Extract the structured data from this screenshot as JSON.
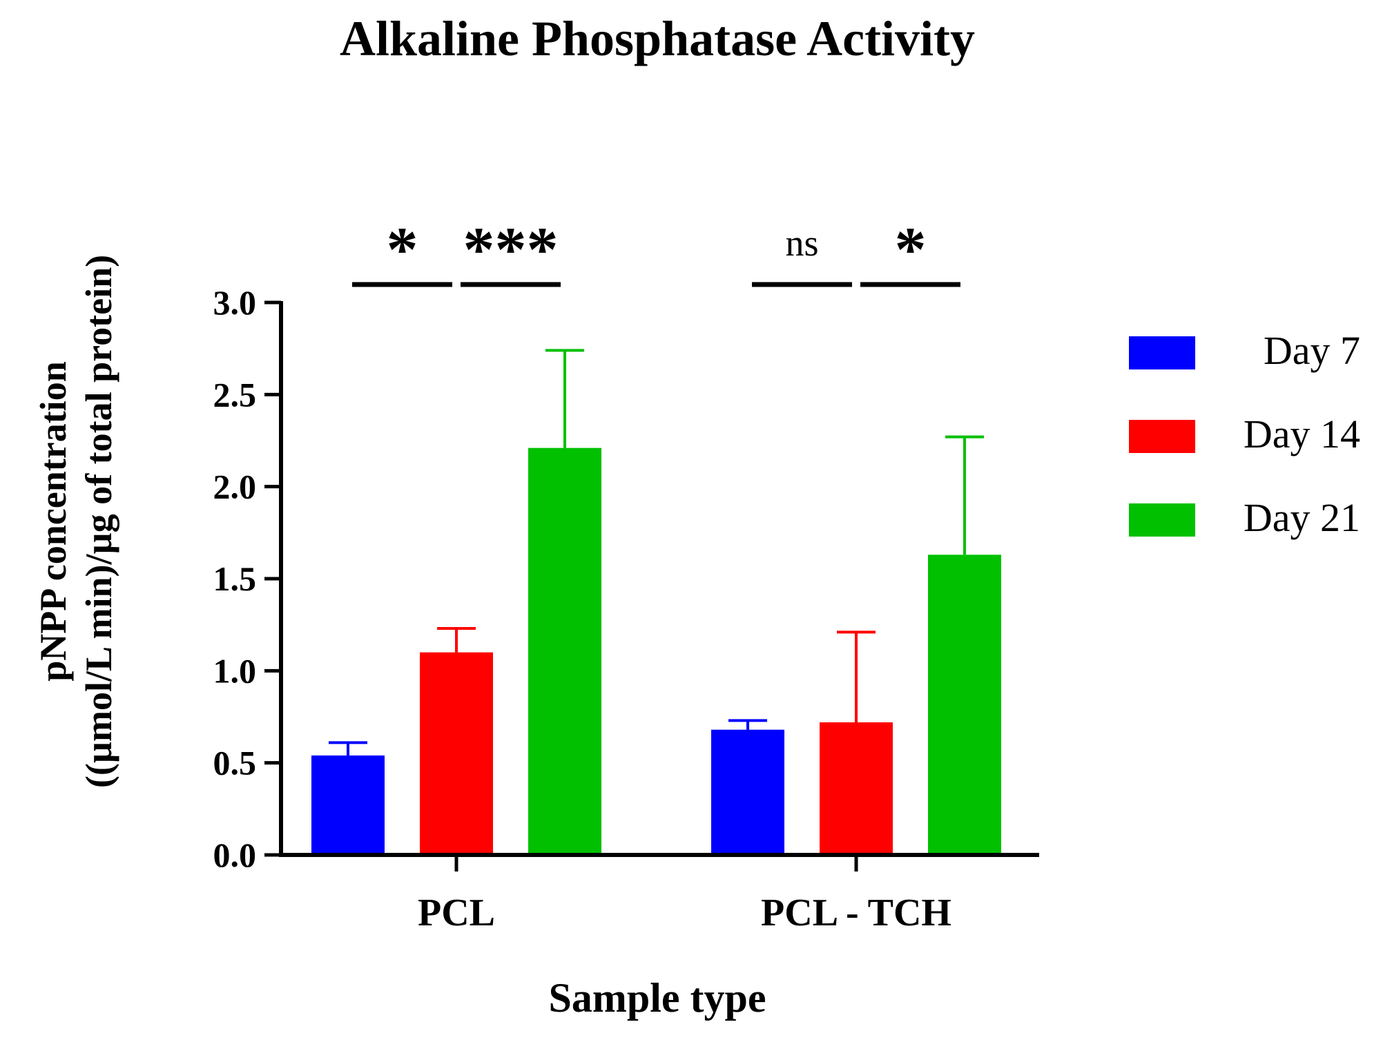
{
  "chart_data": {
    "type": "bar",
    "title": "Alkaline Phosphatase Activity",
    "xlabel": "Sample type",
    "ylabel_line1": "pNPP concentration",
    "ylabel_line2": "((µmol/L min)/µg of total protein)",
    "ylim": [
      0,
      3.0
    ],
    "yticks": [
      "0.0",
      "0.5",
      "1.0",
      "1.5",
      "2.0",
      "2.5",
      "3.0"
    ],
    "categories": [
      "PCL",
      "PCL - TCH"
    ],
    "series": [
      {
        "name": "Day 7",
        "color": "#0000ff",
        "values": [
          0.54,
          0.68
        ],
        "errors": [
          0.07,
          0.05
        ]
      },
      {
        "name": "Day 14",
        "color": "#ff0000",
        "values": [
          1.1,
          0.72
        ],
        "errors": [
          0.13,
          0.49
        ]
      },
      {
        "name": "Day 21",
        "color": "#00c000",
        "values": [
          2.21,
          1.63
        ],
        "errors": [
          0.53,
          0.64
        ]
      }
    ],
    "significance": [
      {
        "category": 0,
        "from": 0,
        "to": 1,
        "label": "*"
      },
      {
        "category": 0,
        "from": 1,
        "to": 2,
        "label": "***"
      },
      {
        "category": 1,
        "from": 0,
        "to": 1,
        "label": "ns"
      },
      {
        "category": 1,
        "from": 1,
        "to": 2,
        "label": "*"
      }
    ],
    "legend_position": "right"
  }
}
